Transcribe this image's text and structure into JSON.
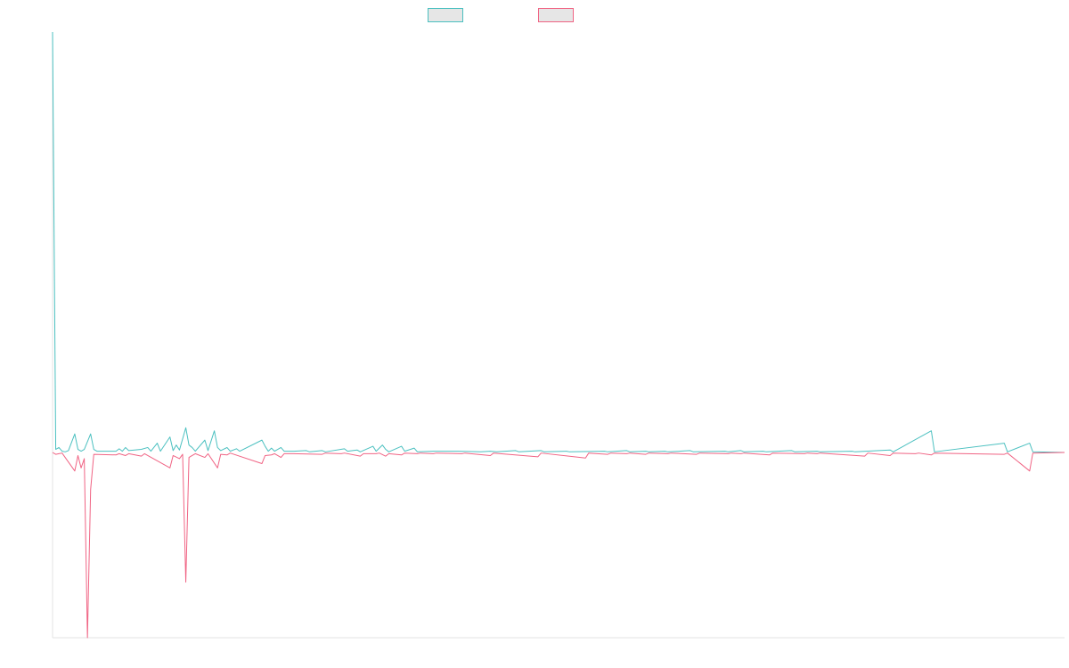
{
  "colors": {
    "teal": "#4bc0c0",
    "pink": "#f06484",
    "legend_fill": "#e6e6e6",
    "axis": "#e3e3e3"
  },
  "legend": [
    {
      "color_key": "teal"
    },
    {
      "color_key": "pink"
    }
  ],
  "chart_data": {
    "type": "line",
    "title": "",
    "xlabel": "",
    "ylabel": "",
    "grid": false,
    "legend_position": "top-center",
    "x_count": 320,
    "ylim": [
      -30,
      68
    ],
    "series": [
      {
        "color_key": "teal",
        "points": [
          [
            0,
            68
          ],
          [
            1,
            0.5
          ],
          [
            2,
            0.8
          ],
          [
            3,
            0.2
          ],
          [
            4,
            0.1
          ],
          [
            5,
            0.3
          ],
          [
            7,
            3
          ],
          [
            8,
            0.5
          ],
          [
            9,
            0.2
          ],
          [
            10,
            0.5
          ],
          [
            12,
            3
          ],
          [
            13,
            0.5
          ],
          [
            14,
            0.2
          ],
          [
            20,
            0.2
          ],
          [
            21,
            0.6
          ],
          [
            22,
            0.2
          ],
          [
            23,
            0.8
          ],
          [
            24,
            0.3
          ],
          [
            28,
            0.5
          ],
          [
            30,
            0.8
          ],
          [
            31,
            0.2
          ],
          [
            33,
            1.5
          ],
          [
            34,
            0.2
          ],
          [
            37,
            2.5
          ],
          [
            38,
            0.3
          ],
          [
            39,
            1.2
          ],
          [
            40,
            0.4
          ],
          [
            42,
            4
          ],
          [
            43,
            1.2
          ],
          [
            44,
            0.8
          ],
          [
            45,
            0.2
          ],
          [
            48,
            2
          ],
          [
            49,
            0.3
          ],
          [
            51,
            3.5
          ],
          [
            52,
            0.8
          ],
          [
            53,
            0.3
          ],
          [
            55,
            0.8
          ],
          [
            56,
            0.2
          ],
          [
            58,
            0.6
          ],
          [
            59,
            0.2
          ],
          [
            66,
            2
          ],
          [
            67,
            1
          ],
          [
            68,
            0.2
          ],
          [
            69,
            0.7
          ],
          [
            70,
            0.2
          ],
          [
            72,
            0.8
          ],
          [
            73,
            0.2
          ],
          [
            76,
            0.2
          ],
          [
            80,
            0.3
          ],
          [
            81,
            0.1
          ],
          [
            85,
            0.3
          ],
          [
            86,
            0.1
          ],
          [
            92,
            0.6
          ],
          [
            93,
            0.2
          ],
          [
            96,
            0.4
          ],
          [
            97,
            0.1
          ],
          [
            101,
            1
          ],
          [
            102,
            0.2
          ],
          [
            104,
            1.2
          ],
          [
            105,
            0.5
          ],
          [
            106,
            0.1
          ],
          [
            110,
            1
          ],
          [
            111,
            0.2
          ],
          [
            114,
            0.7
          ],
          [
            115,
            0.1
          ],
          [
            120,
            0.2
          ],
          [
            128,
            0.2
          ],
          [
            135,
            0.1
          ],
          [
            138,
            0.2
          ],
          [
            140,
            0.1
          ],
          [
            146,
            0.3
          ],
          [
            147,
            0.1
          ],
          [
            154,
            0.3
          ],
          [
            155,
            0.1
          ],
          [
            162,
            0.2
          ],
          [
            163,
            0.1
          ],
          [
            174,
            0.2
          ],
          [
            175,
            0.1
          ],
          [
            181,
            0.3
          ],
          [
            182,
            0.1
          ],
          [
            187,
            0.2
          ],
          [
            188,
            0.1
          ],
          [
            193,
            0.2
          ],
          [
            194,
            0.1
          ],
          [
            201,
            0.3
          ],
          [
            202,
            0.1
          ],
          [
            212,
            0.2
          ],
          [
            213,
            0.1
          ],
          [
            217,
            0.3
          ],
          [
            218,
            0.1
          ],
          [
            224,
            0.2
          ],
          [
            225,
            0.1
          ],
          [
            233,
            0.3
          ],
          [
            234,
            0.1
          ],
          [
            241,
            0.2
          ],
          [
            242,
            0.1
          ],
          [
            252,
            0.2
          ],
          [
            253,
            0.1
          ],
          [
            264,
            0.4
          ],
          [
            265,
            0.1
          ],
          [
            277,
            3.5
          ],
          [
            278,
            0.1
          ],
          [
            300,
            1.5
          ],
          [
            301,
            0.1
          ],
          [
            308,
            1.5
          ],
          [
            309,
            0.1
          ],
          [
            319,
            0
          ]
        ]
      },
      {
        "color_key": "pink",
        "points": [
          [
            0,
            0
          ],
          [
            1,
            -0.3
          ],
          [
            2,
            -0.2
          ],
          [
            3,
            -0.1
          ],
          [
            7,
            -3
          ],
          [
            8,
            -0.5
          ],
          [
            9,
            -2.5
          ],
          [
            10,
            -1
          ],
          [
            11,
            -30
          ],
          [
            12,
            -6
          ],
          [
            13,
            -0.3
          ],
          [
            20,
            -0.4
          ],
          [
            21,
            -0.2
          ],
          [
            23,
            -0.5
          ],
          [
            24,
            -0.2
          ],
          [
            28,
            -0.6
          ],
          [
            29,
            -0.2
          ],
          [
            37,
            -2.5
          ],
          [
            38,
            -0.5
          ],
          [
            40,
            -1
          ],
          [
            41,
            -0.3
          ],
          [
            42,
            -21
          ],
          [
            43,
            -0.8
          ],
          [
            44,
            -0.5
          ],
          [
            45,
            -0.2
          ],
          [
            48,
            -0.8
          ],
          [
            49,
            -0.2
          ],
          [
            52,
            -2.5
          ],
          [
            53,
            -0.3
          ],
          [
            55,
            -0.4
          ],
          [
            56,
            -0.1
          ],
          [
            66,
            -1.8
          ],
          [
            67,
            -0.5
          ],
          [
            69,
            -0.4
          ],
          [
            70,
            -0.2
          ],
          [
            72,
            -0.8
          ],
          [
            73,
            -0.2
          ],
          [
            76,
            -0.2
          ],
          [
            85,
            -0.3
          ],
          [
            86,
            -0.1
          ],
          [
            91,
            -0.2
          ],
          [
            92,
            -0.1
          ],
          [
            97,
            -0.6
          ],
          [
            98,
            -0.2
          ],
          [
            102,
            -0.2
          ],
          [
            103,
            -0.1
          ],
          [
            105,
            -0.6
          ],
          [
            106,
            -0.2
          ],
          [
            110,
            -0.4
          ],
          [
            111,
            -0.1
          ],
          [
            115,
            -0.2
          ],
          [
            116,
            -0.1
          ],
          [
            120,
            -0.2
          ],
          [
            121,
            -0.1
          ],
          [
            129,
            -0.2
          ],
          [
            130,
            -0.1
          ],
          [
            138,
            -0.5
          ],
          [
            139,
            -0.1
          ],
          [
            153,
            -0.7
          ],
          [
            154,
            -0.1
          ],
          [
            168,
            -0.9
          ],
          [
            169,
            -0.1
          ],
          [
            175,
            -0.3
          ],
          [
            176,
            -0.1
          ],
          [
            181,
            -0.2
          ],
          [
            182,
            -0.1
          ],
          [
            187,
            -0.3
          ],
          [
            188,
            -0.1
          ],
          [
            194,
            -0.2
          ],
          [
            195,
            -0.1
          ],
          [
            203,
            -0.3
          ],
          [
            204,
            -0.1
          ],
          [
            213,
            -0.2
          ],
          [
            214,
            -0.1
          ],
          [
            217,
            -0.2
          ],
          [
            218,
            -0.1
          ],
          [
            226,
            -0.4
          ],
          [
            227,
            -0.1
          ],
          [
            237,
            -0.2
          ],
          [
            238,
            -0.1
          ],
          [
            241,
            -0.2
          ],
          [
            242,
            -0.1
          ],
          [
            256,
            -0.6
          ],
          [
            257,
            -0.1
          ],
          [
            264,
            -0.5
          ],
          [
            265,
            -0.1
          ],
          [
            272,
            -0.2
          ],
          [
            273,
            -0.1
          ],
          [
            277,
            -0.4
          ],
          [
            278,
            -0.1
          ],
          [
            300,
            -0.3
          ],
          [
            301,
            -0.1
          ],
          [
            308,
            -3
          ],
          [
            309,
            -0.1
          ],
          [
            319,
            0
          ]
        ]
      }
    ]
  }
}
